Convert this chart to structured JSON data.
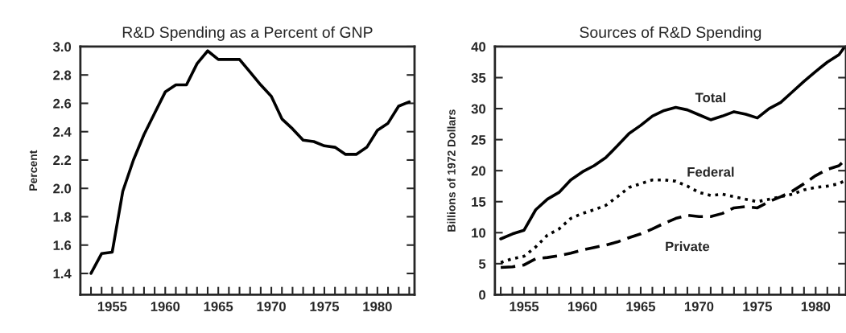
{
  "chart_data": [
    {
      "type": "line",
      "title": "R&D Spending as a Percent of GNP",
      "ylabel": "Percent",
      "x": [
        1953,
        1954,
        1955,
        1956,
        1957,
        1958,
        1959,
        1960,
        1961,
        1962,
        1963,
        1964,
        1965,
        1966,
        1967,
        1968,
        1969,
        1970,
        1971,
        1972,
        1973,
        1974,
        1975,
        1976,
        1977,
        1978,
        1979,
        1980,
        1981,
        1982,
        1983
      ],
      "series": [
        {
          "color": "#000000",
          "line_style": "solid",
          "values": [
            1.4,
            1.54,
            1.55,
            1.98,
            2.2,
            2.38,
            2.53,
            2.68,
            2.73,
            2.73,
            2.88,
            2.97,
            2.91,
            2.91,
            2.91,
            2.82,
            2.73,
            2.65,
            2.49,
            2.42,
            2.34,
            2.33,
            2.3,
            2.29,
            2.24,
            2.24,
            2.29,
            2.41,
            2.46,
            2.58,
            2.61
          ]
        }
      ],
      "xlim": [
        1952,
        1983.5
      ],
      "ylim": [
        1.25,
        3.0
      ],
      "xticks": [
        {
          "value": 1953,
          "label": null
        },
        {
          "value": 1954,
          "label": null
        },
        1955,
        {
          "value": 1956,
          "label": null
        },
        {
          "value": 1957,
          "label": null
        },
        {
          "value": 1958,
          "label": null
        },
        {
          "value": 1959,
          "label": null
        },
        1960,
        {
          "value": 1961,
          "label": null
        },
        {
          "value": 1962,
          "label": null
        },
        {
          "value": 1963,
          "label": null
        },
        {
          "value": 1964,
          "label": null
        },
        1965,
        {
          "value": 1966,
          "label": null
        },
        {
          "value": 1967,
          "label": null
        },
        {
          "value": 1968,
          "label": null
        },
        {
          "value": 1969,
          "label": null
        },
        1970,
        {
          "value": 1971,
          "label": null
        },
        {
          "value": 1972,
          "label": null
        },
        {
          "value": 1973,
          "label": null
        },
        {
          "value": 1974,
          "label": null
        },
        1975,
        {
          "value": 1976,
          "label": null
        },
        {
          "value": 1977,
          "label": null
        },
        {
          "value": 1978,
          "label": null
        },
        {
          "value": 1979,
          "label": null
        },
        1980,
        {
          "value": 1981,
          "label": null
        },
        {
          "value": 1982,
          "label": null
        },
        {
          "value": 1983,
          "label": null
        }
      ],
      "yticks": [
        1.4,
        1.6,
        1.8,
        {
          "value": 2.0,
          "label": "2.0"
        },
        2.2,
        2.4,
        2.6,
        2.8,
        {
          "value": 3.0,
          "label": "3.0"
        }
      ],
      "grid": false,
      "legend": false,
      "marker": "none"
    },
    {
      "type": "line",
      "title": "Sources of R&D Spending",
      "ylabel": "Billions of 1972 Dollars",
      "x": [
        1953,
        1954,
        1955,
        1956,
        1957,
        1958,
        1959,
        1960,
        1961,
        1962,
        1963,
        1964,
        1965,
        1966,
        1967,
        1968,
        1969,
        1970,
        1971,
        1972,
        1973,
        1974,
        1975,
        1976,
        1977,
        1978,
        1979,
        1980,
        1981,
        1982,
        1982.5
      ],
      "series": [
        {
          "name": "Total",
          "color": "#000000",
          "line_style": "solid",
          "values": [
            9.0,
            9.8,
            10.4,
            13.7,
            15.4,
            16.5,
            18.5,
            19.8,
            20.8,
            22.1,
            24.0,
            26.0,
            27.3,
            28.8,
            29.7,
            30.2,
            29.8,
            29.0,
            28.2,
            28.8,
            29.5,
            29.1,
            28.5,
            30.0,
            31.0,
            32.7,
            34.4,
            36.0,
            37.5,
            38.7,
            40.0
          ]
        },
        {
          "name": "Federal",
          "color": "#000000",
          "line_style": "dotted",
          "values": [
            5.2,
            5.8,
            6.2,
            7.7,
            9.6,
            10.6,
            12.3,
            13.1,
            13.7,
            14.4,
            15.8,
            17.3,
            17.9,
            18.5,
            18.5,
            18.3,
            17.5,
            16.5,
            16.0,
            16.2,
            15.8,
            15.4,
            15.0,
            15.4,
            15.8,
            16.2,
            16.9,
            17.3,
            17.5,
            17.9,
            18.4
          ]
        },
        {
          "name": "Private",
          "color": "#000000",
          "line_style": "dashed",
          "values": [
            4.4,
            4.5,
            4.8,
            5.8,
            6.0,
            6.3,
            6.7,
            7.2,
            7.6,
            8.0,
            8.5,
            9.2,
            9.8,
            10.6,
            11.5,
            12.3,
            12.8,
            12.6,
            12.6,
            13.1,
            14.0,
            14.2,
            14.0,
            15.0,
            15.8,
            16.7,
            17.9,
            19.2,
            20.2,
            20.8,
            21.7
          ]
        }
      ],
      "xlim": [
        1952.5,
        1982.6
      ],
      "ylim": [
        0,
        40
      ],
      "xticks": [
        {
          "value": 1953,
          "label": null
        },
        {
          "value": 1954,
          "label": null
        },
        1955,
        {
          "value": 1956,
          "label": null
        },
        {
          "value": 1957,
          "label": null
        },
        {
          "value": 1958,
          "label": null
        },
        {
          "value": 1959,
          "label": null
        },
        1960,
        {
          "value": 1961,
          "label": null
        },
        {
          "value": 1962,
          "label": null
        },
        {
          "value": 1963,
          "label": null
        },
        {
          "value": 1964,
          "label": null
        },
        1965,
        {
          "value": 1966,
          "label": null
        },
        {
          "value": 1967,
          "label": null
        },
        {
          "value": 1968,
          "label": null
        },
        {
          "value": 1969,
          "label": null
        },
        1970,
        {
          "value": 1971,
          "label": null
        },
        {
          "value": 1972,
          "label": null
        },
        {
          "value": 1973,
          "label": null
        },
        {
          "value": 1974,
          "label": null
        },
        1975,
        {
          "value": 1976,
          "label": null
        },
        {
          "value": 1977,
          "label": null
        },
        {
          "value": 1978,
          "label": null
        },
        {
          "value": 1979,
          "label": null
        },
        1980,
        {
          "value": 1981,
          "label": null
        },
        {
          "value": 1982,
          "label": null
        }
      ],
      "yticks": [
        0,
        5,
        10,
        15,
        20,
        25,
        30,
        35,
        40
      ],
      "grid": false,
      "legend": false,
      "marker": "none"
    }
  ]
}
